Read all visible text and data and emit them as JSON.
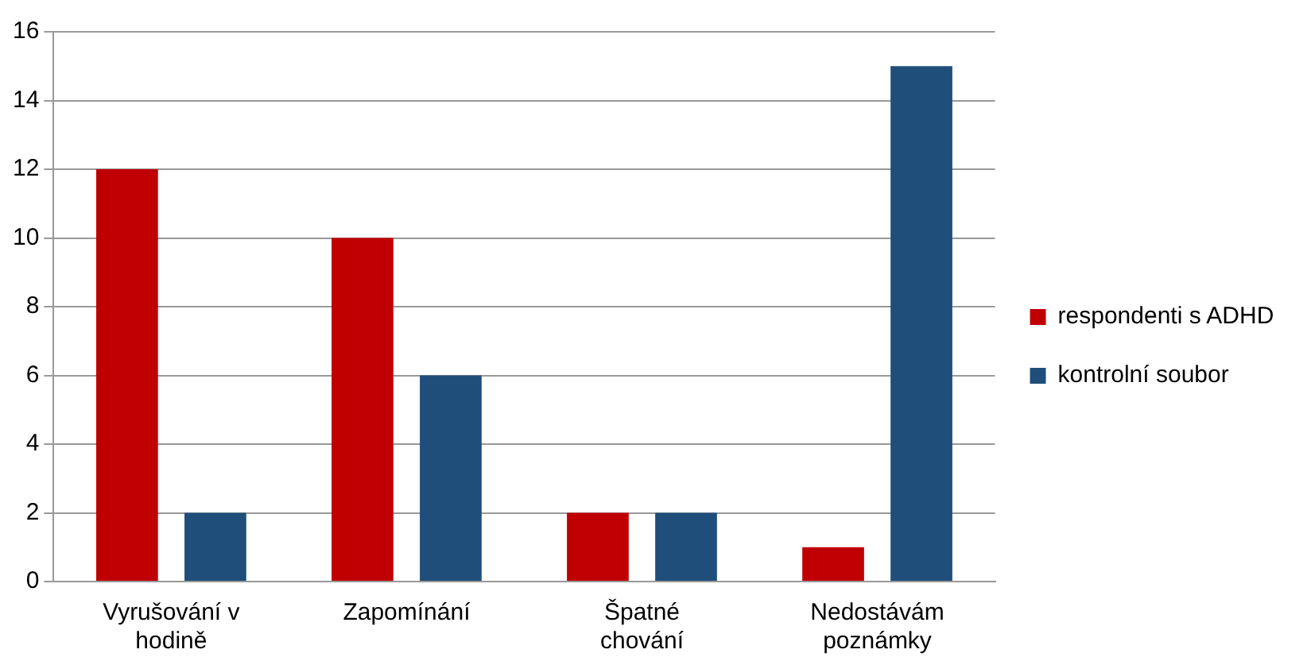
{
  "chart_data": {
    "type": "bar",
    "categories": [
      "Vyrušování v hodině",
      "Zapomínání",
      "Špatné chování",
      "Nedostávám poznámky"
    ],
    "series": [
      {
        "name": "respondenti s ADHD",
        "color": "#c00000",
        "values": [
          12,
          10,
          2,
          1
        ]
      },
      {
        "name": "kontrolní soubor",
        "color": "#1f4e7a",
        "values": [
          2,
          6,
          2,
          15
        ]
      }
    ],
    "ylim": [
      0,
      16
    ],
    "yticks": [
      0,
      2,
      4,
      6,
      8,
      10,
      12,
      14,
      16
    ],
    "grid": "y",
    "legend": "right"
  }
}
